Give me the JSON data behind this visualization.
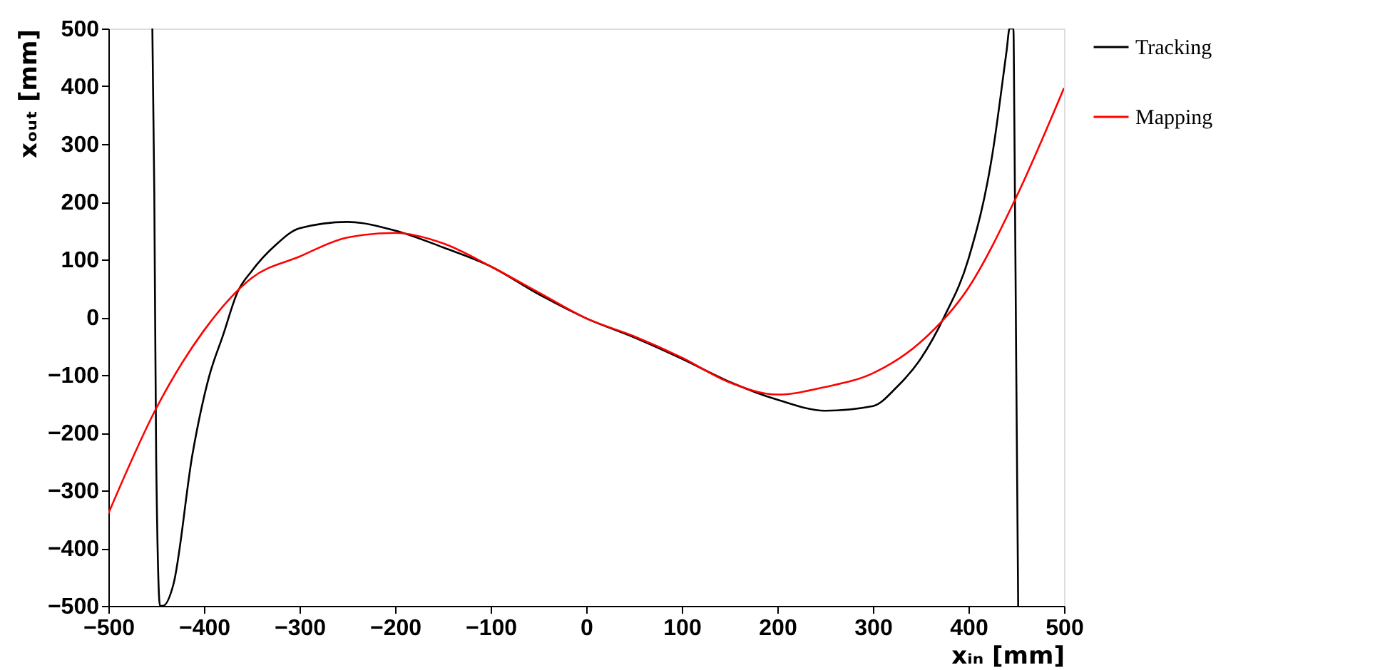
{
  "chart_data": {
    "type": "line",
    "xlabel": "xᵢₙ [mm]",
    "ylabel": "xₒᵤₜ [mm]",
    "xlim": [
      -500,
      500
    ],
    "ylim": [
      -500,
      500
    ],
    "xticks": [
      -500,
      -400,
      -300,
      -200,
      -100,
      0,
      100,
      200,
      300,
      400,
      500
    ],
    "yticks": [
      -500,
      -400,
      -300,
      -200,
      -100,
      0,
      100,
      200,
      300,
      400,
      500
    ],
    "grid": false,
    "legend": "right",
    "marker": "none",
    "line_style": "solid",
    "series": [
      {
        "name": "Tracking",
        "color": "#000000",
        "x": [
          -454,
          -452,
          -450,
          -446,
          -443,
          -432,
          -412,
          -395,
          -380,
          -365,
          -350,
          -325,
          -300,
          -250,
          -200,
          -150,
          -100,
          -50,
          0,
          50,
          100,
          150,
          200,
          250,
          300,
          325,
          350,
          375,
          400,
          425,
          440,
          443,
          447,
          448,
          450,
          452
        ],
        "values": [
          500,
          220,
          -245,
          -500,
          -500,
          -463,
          -237,
          -105,
          -31,
          43,
          80,
          125,
          154,
          165,
          150,
          121,
          88,
          40,
          -2,
          -35,
          -72,
          -112,
          -143,
          -162,
          -154,
          -121,
          -72,
          2,
          101,
          282,
          463,
          500,
          500,
          340,
          -93,
          -500
        ]
      },
      {
        "name": "Mapping",
        "color": "#ff0000",
        "x": [
          -500,
          -450,
          -400,
          -350,
          -300,
          -250,
          -200,
          -150,
          -100,
          -50,
          0,
          50,
          100,
          150,
          200,
          250,
          300,
          350,
          400,
          450,
          500
        ],
        "values": [
          -340,
          -158,
          -23,
          68,
          105,
          138,
          146,
          128,
          88,
          43,
          -2,
          -33,
          -70,
          -113,
          -134,
          -121,
          -97,
          -43,
          51,
          208,
          397
        ]
      }
    ]
  }
}
